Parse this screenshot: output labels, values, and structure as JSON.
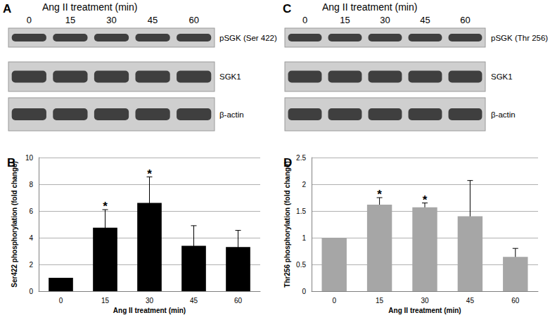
{
  "chart_data": [
    {
      "type": "bar",
      "panel": "B",
      "categories": [
        "0",
        "15",
        "30",
        "45",
        "60"
      ],
      "values": [
        1,
        4.75,
        6.6,
        3.4,
        3.3
      ],
      "errors": [
        null,
        1.35,
        1.95,
        1.5,
        1.25
      ],
      "annotations": [
        {
          "category": "15",
          "text": "*"
        },
        {
          "category": "30",
          "text": "*"
        }
      ],
      "x_label": "Ang II treatment (min)",
      "y_label": "Ser422 phosphorylation (fold change)",
      "color": "#000000",
      "ylim": [
        0,
        10
      ],
      "yticks": [
        0,
        2,
        4,
        6,
        8,
        10
      ],
      "grid": true
    },
    {
      "type": "bar",
      "panel": "D",
      "categories": [
        "0",
        "15",
        "30",
        "45",
        "60"
      ],
      "values": [
        1,
        1.62,
        1.57,
        1.4,
        0.64
      ],
      "errors": [
        null,
        0.13,
        0.08,
        0.67,
        0.16
      ],
      "annotations": [
        {
          "category": "15",
          "text": "*"
        },
        {
          "category": "30",
          "text": "*"
        }
      ],
      "x_label": "Ang II treatment (min)",
      "y_label": "Thr256 phosphorylation (fold change)",
      "color": "#a6a6a6",
      "ylim": [
        0,
        2.5
      ],
      "yticks": [
        0,
        0.5,
        1,
        1.5,
        2,
        2.5
      ],
      "grid": true
    }
  ],
  "blots": [
    {
      "panel": "A",
      "title": "Ang II treatment (min)",
      "lanes": [
        "0",
        "15",
        "30",
        "45",
        "60"
      ],
      "rows": [
        "pSGK (Ser 422)",
        "SGK1",
        "β-actin"
      ]
    },
    {
      "panel": "C",
      "title": "Ang II treatment (min)",
      "lanes": [
        "0",
        "15",
        "30",
        "45",
        "60"
      ],
      "rows": [
        "pSGK (Thr 256)",
        "SGK1",
        "β-actin"
      ]
    }
  ]
}
